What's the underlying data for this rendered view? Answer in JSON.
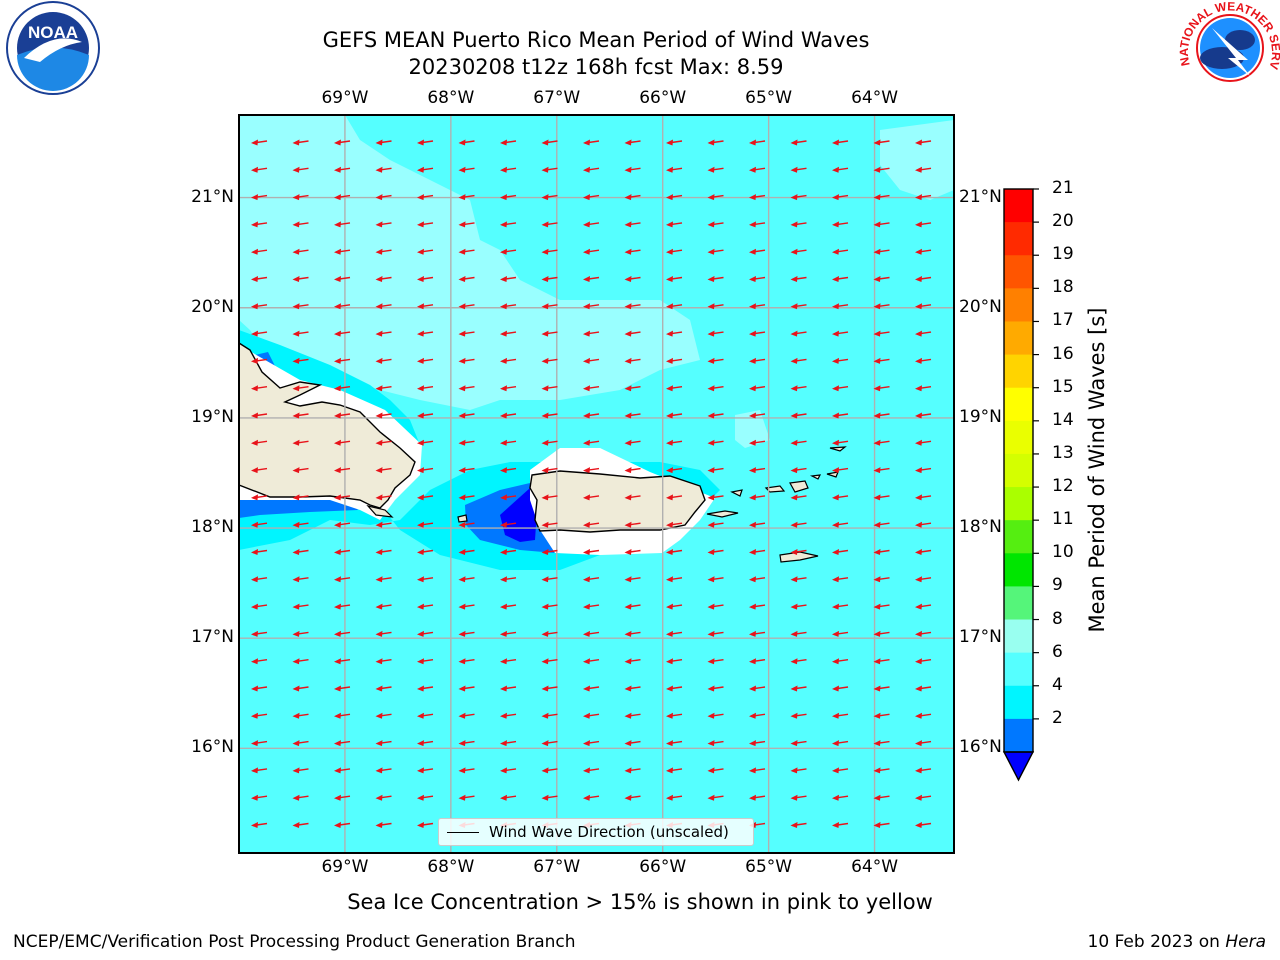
{
  "header": {
    "title_line1": "GEFS MEAN Puerto Rico Mean Period of Wind Waves",
    "title_line2": "20230208 t12z 168h fcst   Max: 8.59"
  },
  "logos": {
    "left": "NOAA",
    "right": "NATIONAL WEATHER SERVICE"
  },
  "map": {
    "lon_labels": [
      "69°W",
      "68°W",
      "67°W",
      "66°W",
      "65°W",
      "64°W"
    ],
    "lat_labels": [
      "21°N",
      "20°N",
      "19°N",
      "18°N",
      "17°N",
      "16°N"
    ],
    "lon_range": [
      -70.0,
      -63.25
    ],
    "lat_range": [
      15.05,
      21.75
    ],
    "grid": true,
    "arrow_color": "#e8131a",
    "land_color": "#efebd8",
    "legend_label": "Wind Wave Direction (unscaled)"
  },
  "colorbar": {
    "label": "Mean Period of Wind Waves [s]",
    "ticks": [
      "21",
      "20",
      "19",
      "18",
      "17",
      "16",
      "15",
      "14",
      "13",
      "12",
      "11",
      "10",
      "9",
      "8",
      "6",
      "4",
      "2"
    ],
    "colors_top_to_bottom": [
      "#ff0000",
      "#ff2a00",
      "#ff5500",
      "#ff8000",
      "#ffaa00",
      "#ffd400",
      "#ffff00",
      "#eaff00",
      "#d4ff00",
      "#aaff00",
      "#55ee11",
      "#00e600",
      "#55f57a",
      "#99fff0",
      "#55ffff",
      "#00f5ff",
      "#0078ff"
    ],
    "extend_color": "#0000ff"
  },
  "note": "Sea Ice Concentration > 15% is shown in pink to yellow",
  "footer": {
    "left": "NCEP/EMC/Verification Post Processing Product Generation Branch",
    "right_date": "10 Feb 2023 on",
    "right_host": "Hera"
  }
}
